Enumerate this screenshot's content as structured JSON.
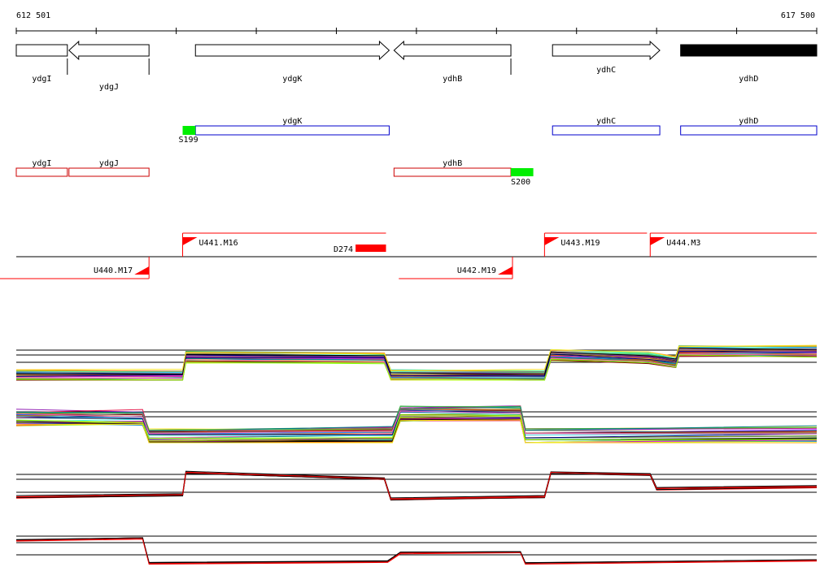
{
  "ruler": {
    "start_label": "612 501",
    "end_label": "617 500",
    "start": 612501,
    "end": 617500
  },
  "colors": {
    "outline": "#000000",
    "fill": "#ffffff",
    "blue": "#0000cc",
    "red": "#cc0000",
    "green": "#00ee00",
    "marker_red": "#ff0000",
    "line_red": "#ff0000"
  },
  "annotated_genes": [
    {
      "name": "ydgI",
      "start": 612501,
      "end": 612820,
      "strand": "none",
      "filled": false
    },
    {
      "name": "ydgJ",
      "start": 612830,
      "end": 613330,
      "strand": "-",
      "filled": false
    },
    {
      "name": "ydgK",
      "start": 613620,
      "end": 614830,
      "strand": "+",
      "filled": false
    },
    {
      "name": "ydhB",
      "start": 614860,
      "end": 615590,
      "strand": "-",
      "filled": false
    },
    {
      "name": "ydhC",
      "start": 615850,
      "end": 616520,
      "strand": "+",
      "filled": false
    },
    {
      "name": "ydhD",
      "start": 616650,
      "end": 617500,
      "strand": "none",
      "filled": true
    }
  ],
  "plus_genes": [
    {
      "name": "ydgK",
      "start": 613620,
      "end": 614830
    },
    {
      "name": "ydhC",
      "start": 615850,
      "end": 616520
    },
    {
      "name": "ydhD",
      "start": 616650,
      "end": 617500
    }
  ],
  "plus_features": [
    {
      "label": "S199",
      "start": 613540,
      "end": 613620
    }
  ],
  "minus_genes": [
    {
      "name": "ydgI",
      "start": 612501,
      "end": 612820
    },
    {
      "name": "ydgJ",
      "start": 612830,
      "end": 613330
    },
    {
      "name": "ydhB",
      "start": 614860,
      "end": 615590
    }
  ],
  "minus_features": [
    {
      "label": "S200",
      "start": 615590,
      "end": 615730
    }
  ],
  "transcripts": {
    "plus": [
      {
        "label": "U441.M16",
        "start": 613540,
        "end": 614810
      },
      {
        "label": "U443.M19",
        "start": 615800,
        "end": 616440
      },
      {
        "label": "U444.M3",
        "start": 616460,
        "end": 617500
      }
    ],
    "minus": [
      {
        "label": "U440.M17",
        "start": 612501,
        "end": 613330
      },
      {
        "label": "U442.M19",
        "start": 614890,
        "end": 615600
      }
    ],
    "marker": {
      "label": "D274",
      "start": 614620,
      "end": 614810
    }
  },
  "tracks": [
    {
      "name": "plus-strand-tiling",
      "levels": [
        {
          "pos": 612501,
          "v": 0.12
        },
        {
          "pos": 613540,
          "v": 0.12
        },
        {
          "pos": 613560,
          "v": 0.58
        },
        {
          "pos": 614800,
          "v": 0.55
        },
        {
          "pos": 614840,
          "v": 0.12
        },
        {
          "pos": 615800,
          "v": 0.12
        },
        {
          "pos": 615840,
          "v": 0.62
        },
        {
          "pos": 616450,
          "v": 0.55
        },
        {
          "pos": 616620,
          "v": 0.45
        },
        {
          "pos": 616640,
          "v": 0.72
        },
        {
          "pos": 617500,
          "v": 0.72
        }
      ]
    },
    {
      "name": "minus-strand-tiling",
      "levels": [
        {
          "pos": 612501,
          "v": 0.45
        },
        {
          "pos": 613290,
          "v": 0.45
        },
        {
          "pos": 613330,
          "v": 0.12
        },
        {
          "pos": 614850,
          "v": 0.15
        },
        {
          "pos": 614900,
          "v": 0.52
        },
        {
          "pos": 615650,
          "v": 0.52
        },
        {
          "pos": 615680,
          "v": 0.12
        },
        {
          "pos": 617500,
          "v": 0.15
        }
      ]
    },
    {
      "name": "plus-strand-summary",
      "levels": [
        {
          "pos": 612501,
          "v": 0.25
        },
        {
          "pos": 613540,
          "v": 0.3
        },
        {
          "pos": 613560,
          "v": 0.85
        },
        {
          "pos": 614800,
          "v": 0.7
        },
        {
          "pos": 614840,
          "v": 0.2
        },
        {
          "pos": 615800,
          "v": 0.25
        },
        {
          "pos": 615840,
          "v": 0.85
        },
        {
          "pos": 616460,
          "v": 0.8
        },
        {
          "pos": 616500,
          "v": 0.45
        },
        {
          "pos": 617500,
          "v": 0.5
        }
      ]
    },
    {
      "name": "minus-strand-summary",
      "levels": [
        {
          "pos": 612501,
          "v": 0.75
        },
        {
          "pos": 613290,
          "v": 0.82
        },
        {
          "pos": 613330,
          "v": 0.1
        },
        {
          "pos": 614820,
          "v": 0.15
        },
        {
          "pos": 614900,
          "v": 0.4
        },
        {
          "pos": 615650,
          "v": 0.42
        },
        {
          "pos": 615680,
          "v": 0.1
        },
        {
          "pos": 617500,
          "v": 0.18
        }
      ]
    }
  ]
}
